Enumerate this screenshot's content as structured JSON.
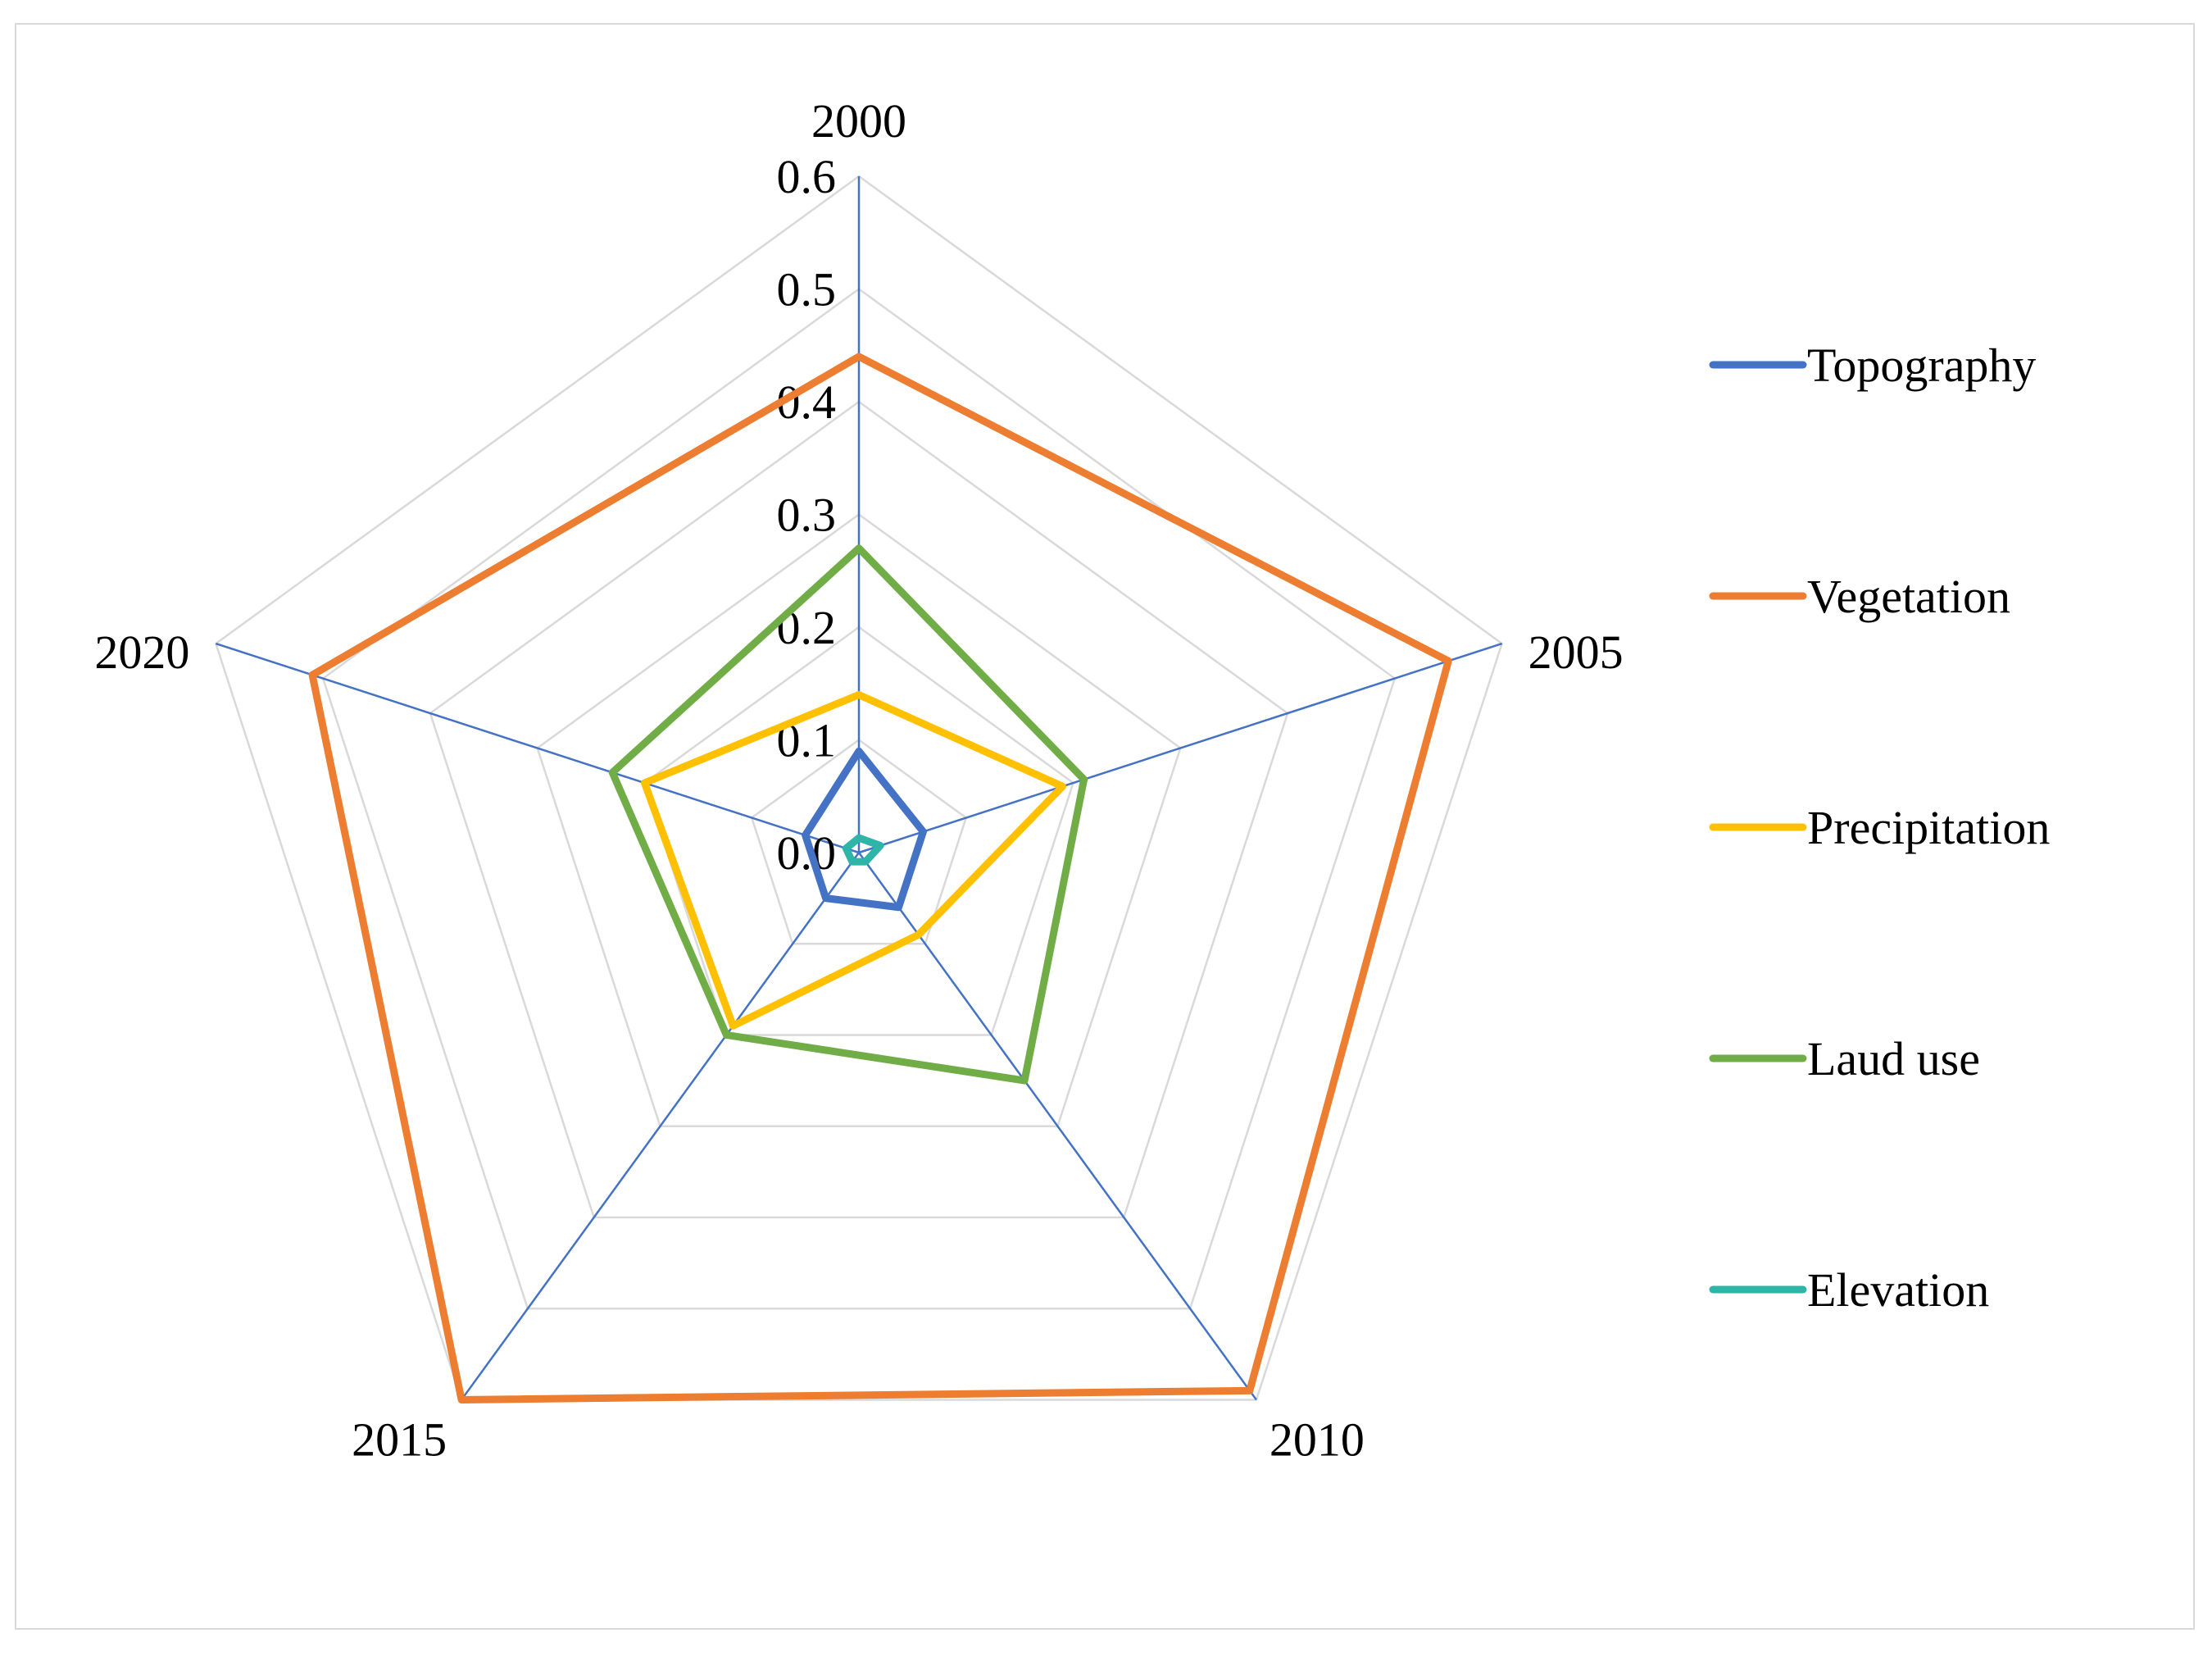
{
  "chart_data": {
    "type": "radar",
    "title": "",
    "categories": [
      "2000",
      "2005",
      "2010",
      "2015",
      "2020"
    ],
    "rlim": [
      0,
      0.6
    ],
    "ticks": [
      "0.0",
      "0.1",
      "0.2",
      "0.3",
      "0.4",
      "0.5",
      "0.6"
    ],
    "tick_values": [
      0,
      0.1,
      0.2,
      0.3,
      0.4,
      0.5,
      0.6
    ],
    "legend_position": "right",
    "series": [
      {
        "name": "Topography",
        "color": "#4472C4",
        "values": [
          0.09,
          0.06,
          0.06,
          0.05,
          0.05
        ]
      },
      {
        "name": "Vegetation",
        "color": "#ED7D31",
        "values": [
          0.44,
          0.55,
          0.59,
          0.6,
          0.51
        ]
      },
      {
        "name": "Precipitation",
        "color": "#FFC000",
        "values": [
          0.14,
          0.19,
          0.09,
          0.19,
          0.2
        ]
      },
      {
        "name": "Laud use",
        "color": "#70AD47",
        "values": [
          0.27,
          0.21,
          0.25,
          0.2,
          0.23
        ]
      },
      {
        "name": "Elevation",
        "color": "#2EB5A8",
        "values": [
          0.013,
          0.02,
          0.01,
          0.01,
          0.012
        ]
      }
    ]
  }
}
